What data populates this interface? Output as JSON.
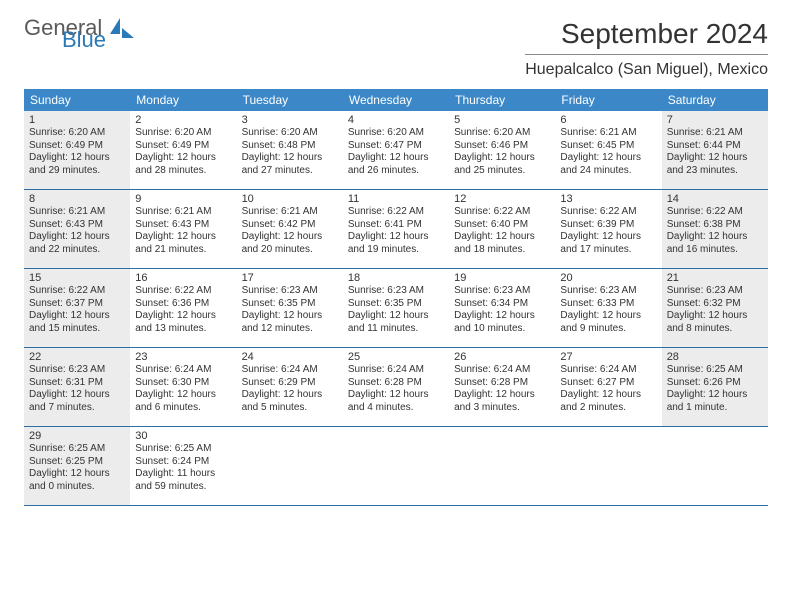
{
  "logo": {
    "general": "General",
    "blue": "Blue"
  },
  "title": "September 2024",
  "location": "Huepalcalco (San Miguel), Mexico",
  "header_bg": "#3b87c8",
  "rule_color": "#2e6da4",
  "shaded_bg": "#ececec",
  "weekdays": [
    "Sunday",
    "Monday",
    "Tuesday",
    "Wednesday",
    "Thursday",
    "Friday",
    "Saturday"
  ],
  "cell_fontsize": 10,
  "daynum_fontsize": 11,
  "weeks": [
    [
      {
        "n": "1",
        "shaded": true,
        "sr": "Sunrise: 6:20 AM",
        "ss": "Sunset: 6:49 PM",
        "d1": "Daylight: 12 hours",
        "d2": "and 29 minutes."
      },
      {
        "n": "2",
        "shaded": false,
        "sr": "Sunrise: 6:20 AM",
        "ss": "Sunset: 6:49 PM",
        "d1": "Daylight: 12 hours",
        "d2": "and 28 minutes."
      },
      {
        "n": "3",
        "shaded": false,
        "sr": "Sunrise: 6:20 AM",
        "ss": "Sunset: 6:48 PM",
        "d1": "Daylight: 12 hours",
        "d2": "and 27 minutes."
      },
      {
        "n": "4",
        "shaded": false,
        "sr": "Sunrise: 6:20 AM",
        "ss": "Sunset: 6:47 PM",
        "d1": "Daylight: 12 hours",
        "d2": "and 26 minutes."
      },
      {
        "n": "5",
        "shaded": false,
        "sr": "Sunrise: 6:20 AM",
        "ss": "Sunset: 6:46 PM",
        "d1": "Daylight: 12 hours",
        "d2": "and 25 minutes."
      },
      {
        "n": "6",
        "shaded": false,
        "sr": "Sunrise: 6:21 AM",
        "ss": "Sunset: 6:45 PM",
        "d1": "Daylight: 12 hours",
        "d2": "and 24 minutes."
      },
      {
        "n": "7",
        "shaded": true,
        "sr": "Sunrise: 6:21 AM",
        "ss": "Sunset: 6:44 PM",
        "d1": "Daylight: 12 hours",
        "d2": "and 23 minutes."
      }
    ],
    [
      {
        "n": "8",
        "shaded": true,
        "sr": "Sunrise: 6:21 AM",
        "ss": "Sunset: 6:43 PM",
        "d1": "Daylight: 12 hours",
        "d2": "and 22 minutes."
      },
      {
        "n": "9",
        "shaded": false,
        "sr": "Sunrise: 6:21 AM",
        "ss": "Sunset: 6:43 PM",
        "d1": "Daylight: 12 hours",
        "d2": "and 21 minutes."
      },
      {
        "n": "10",
        "shaded": false,
        "sr": "Sunrise: 6:21 AM",
        "ss": "Sunset: 6:42 PM",
        "d1": "Daylight: 12 hours",
        "d2": "and 20 minutes."
      },
      {
        "n": "11",
        "shaded": false,
        "sr": "Sunrise: 6:22 AM",
        "ss": "Sunset: 6:41 PM",
        "d1": "Daylight: 12 hours",
        "d2": "and 19 minutes."
      },
      {
        "n": "12",
        "shaded": false,
        "sr": "Sunrise: 6:22 AM",
        "ss": "Sunset: 6:40 PM",
        "d1": "Daylight: 12 hours",
        "d2": "and 18 minutes."
      },
      {
        "n": "13",
        "shaded": false,
        "sr": "Sunrise: 6:22 AM",
        "ss": "Sunset: 6:39 PM",
        "d1": "Daylight: 12 hours",
        "d2": "and 17 minutes."
      },
      {
        "n": "14",
        "shaded": true,
        "sr": "Sunrise: 6:22 AM",
        "ss": "Sunset: 6:38 PM",
        "d1": "Daylight: 12 hours",
        "d2": "and 16 minutes."
      }
    ],
    [
      {
        "n": "15",
        "shaded": true,
        "sr": "Sunrise: 6:22 AM",
        "ss": "Sunset: 6:37 PM",
        "d1": "Daylight: 12 hours",
        "d2": "and 15 minutes."
      },
      {
        "n": "16",
        "shaded": false,
        "sr": "Sunrise: 6:22 AM",
        "ss": "Sunset: 6:36 PM",
        "d1": "Daylight: 12 hours",
        "d2": "and 13 minutes."
      },
      {
        "n": "17",
        "shaded": false,
        "sr": "Sunrise: 6:23 AM",
        "ss": "Sunset: 6:35 PM",
        "d1": "Daylight: 12 hours",
        "d2": "and 12 minutes."
      },
      {
        "n": "18",
        "shaded": false,
        "sr": "Sunrise: 6:23 AM",
        "ss": "Sunset: 6:35 PM",
        "d1": "Daylight: 12 hours",
        "d2": "and 11 minutes."
      },
      {
        "n": "19",
        "shaded": false,
        "sr": "Sunrise: 6:23 AM",
        "ss": "Sunset: 6:34 PM",
        "d1": "Daylight: 12 hours",
        "d2": "and 10 minutes."
      },
      {
        "n": "20",
        "shaded": false,
        "sr": "Sunrise: 6:23 AM",
        "ss": "Sunset: 6:33 PM",
        "d1": "Daylight: 12 hours",
        "d2": "and 9 minutes."
      },
      {
        "n": "21",
        "shaded": true,
        "sr": "Sunrise: 6:23 AM",
        "ss": "Sunset: 6:32 PM",
        "d1": "Daylight: 12 hours",
        "d2": "and 8 minutes."
      }
    ],
    [
      {
        "n": "22",
        "shaded": true,
        "sr": "Sunrise: 6:23 AM",
        "ss": "Sunset: 6:31 PM",
        "d1": "Daylight: 12 hours",
        "d2": "and 7 minutes."
      },
      {
        "n": "23",
        "shaded": false,
        "sr": "Sunrise: 6:24 AM",
        "ss": "Sunset: 6:30 PM",
        "d1": "Daylight: 12 hours",
        "d2": "and 6 minutes."
      },
      {
        "n": "24",
        "shaded": false,
        "sr": "Sunrise: 6:24 AM",
        "ss": "Sunset: 6:29 PM",
        "d1": "Daylight: 12 hours",
        "d2": "and 5 minutes."
      },
      {
        "n": "25",
        "shaded": false,
        "sr": "Sunrise: 6:24 AM",
        "ss": "Sunset: 6:28 PM",
        "d1": "Daylight: 12 hours",
        "d2": "and 4 minutes."
      },
      {
        "n": "26",
        "shaded": false,
        "sr": "Sunrise: 6:24 AM",
        "ss": "Sunset: 6:28 PM",
        "d1": "Daylight: 12 hours",
        "d2": "and 3 minutes."
      },
      {
        "n": "27",
        "shaded": false,
        "sr": "Sunrise: 6:24 AM",
        "ss": "Sunset: 6:27 PM",
        "d1": "Daylight: 12 hours",
        "d2": "and 2 minutes."
      },
      {
        "n": "28",
        "shaded": true,
        "sr": "Sunrise: 6:25 AM",
        "ss": "Sunset: 6:26 PM",
        "d1": "Daylight: 12 hours",
        "d2": "and 1 minute."
      }
    ],
    [
      {
        "n": "29",
        "shaded": true,
        "sr": "Sunrise: 6:25 AM",
        "ss": "Sunset: 6:25 PM",
        "d1": "Daylight: 12 hours",
        "d2": "and 0 minutes."
      },
      {
        "n": "30",
        "shaded": false,
        "sr": "Sunrise: 6:25 AM",
        "ss": "Sunset: 6:24 PM",
        "d1": "Daylight: 11 hours",
        "d2": "and 59 minutes."
      },
      {
        "empty": true
      },
      {
        "empty": true
      },
      {
        "empty": true
      },
      {
        "empty": true
      },
      {
        "empty": true
      }
    ]
  ]
}
